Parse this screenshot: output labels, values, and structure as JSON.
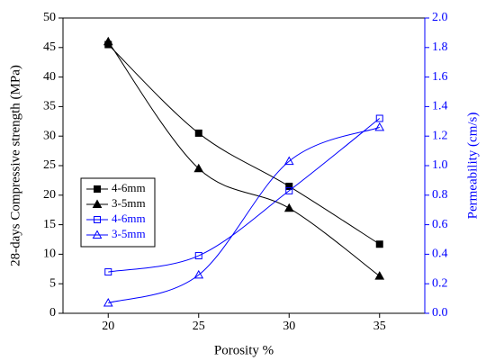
{
  "chart_data": {
    "type": "line",
    "x_label": "Porosity %",
    "y_label": "28-days Compressive strength (MPa)",
    "y2_label": "Permeability (cm/s)",
    "x": [
      20,
      25,
      30,
      35
    ],
    "xlim": [
      17.5,
      37.5
    ],
    "xticks": [
      20,
      25,
      30,
      35
    ],
    "ylim": [
      0,
      50
    ],
    "yticks": [
      0,
      5,
      10,
      15,
      20,
      25,
      30,
      35,
      40,
      45,
      50
    ],
    "y2lim": [
      0,
      2
    ],
    "y2ticks": [
      {
        "value": 0,
        "label": "0.0"
      },
      0.2,
      0.4,
      0.6,
      0.8,
      {
        "value": 1,
        "label": "1.0"
      },
      1.2,
      1.4,
      1.6,
      1.8,
      {
        "value": 2,
        "label": "2.0"
      }
    ],
    "y2_color": "#0000ff",
    "legend": "center left",
    "series": [
      {
        "name": "4-6mm",
        "color": "#000000",
        "marker": "square",
        "filled": true,
        "values": [
          45.5,
          30.5,
          21.5,
          11.7
        ]
      },
      {
        "name": "3-5mm",
        "color": "#000000",
        "marker": "triangle",
        "filled": true,
        "values": [
          46,
          24.5,
          17.8,
          6.3
        ]
      },
      {
        "name": "4-6mm",
        "color": "#0000ff",
        "marker": "square",
        "filled": false,
        "axis": "y2",
        "values": [
          0.28,
          0.39,
          0.83,
          1.32
        ]
      },
      {
        "name": "3-5mm",
        "color": "#0000ff",
        "marker": "triangle",
        "filled": false,
        "axis": "y2",
        "values": [
          0.07,
          0.26,
          1.03,
          1.26
        ]
      }
    ]
  }
}
